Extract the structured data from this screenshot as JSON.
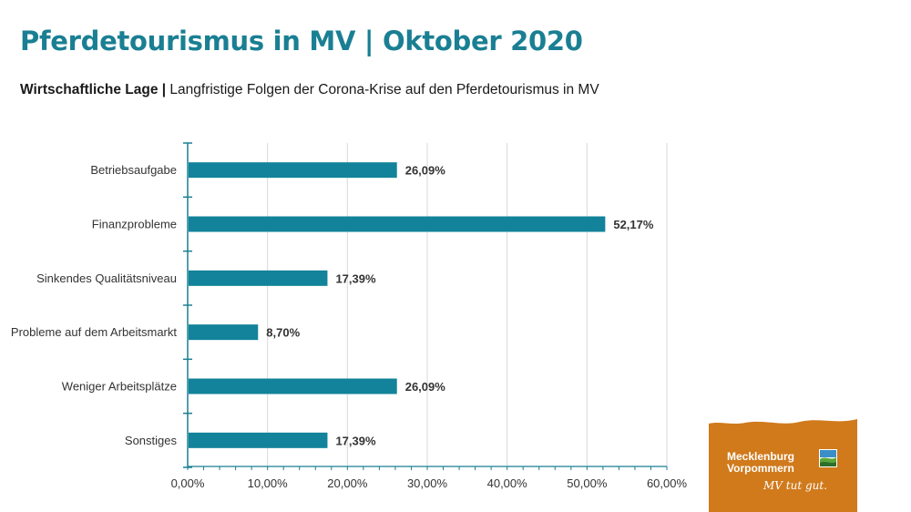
{
  "header": {
    "title": "Pferdetourismus in MV | Oktober 2020",
    "subtitle_bold": "Wirtschaftliche Lage |",
    "subtitle_rest": " Langfristige Folgen der Corona-Krise auf den Pferdetourismus in MV"
  },
  "chart_data": {
    "type": "bar",
    "orientation": "horizontal",
    "categories": [
      "Betriebsaufgabe",
      "Finanzprobleme",
      "Sinkendes Qualitätsniveau",
      "Probleme auf dem Arbeitsmarkt",
      "Weniger Arbeitsplätze",
      "Sonstiges"
    ],
    "values": [
      26.09,
      52.17,
      17.39,
      8.7,
      26.09,
      17.39
    ],
    "value_labels": [
      "26,09%",
      "52,17%",
      "17,39%",
      "8,70%",
      "26,09%",
      "17,39%"
    ],
    "xlim": [
      0,
      60
    ],
    "x_ticks": [
      "0,00%",
      "10,00%",
      "20,00%",
      "30,00%",
      "40,00%",
      "50,00%",
      "60,00%"
    ],
    "grid": true,
    "bar_color": "#12839a"
  },
  "logo": {
    "line1": "Mecklenburg",
    "line2": "Vorpommern",
    "slogan": "MV tut gut.",
    "color": "#d07a1c"
  }
}
